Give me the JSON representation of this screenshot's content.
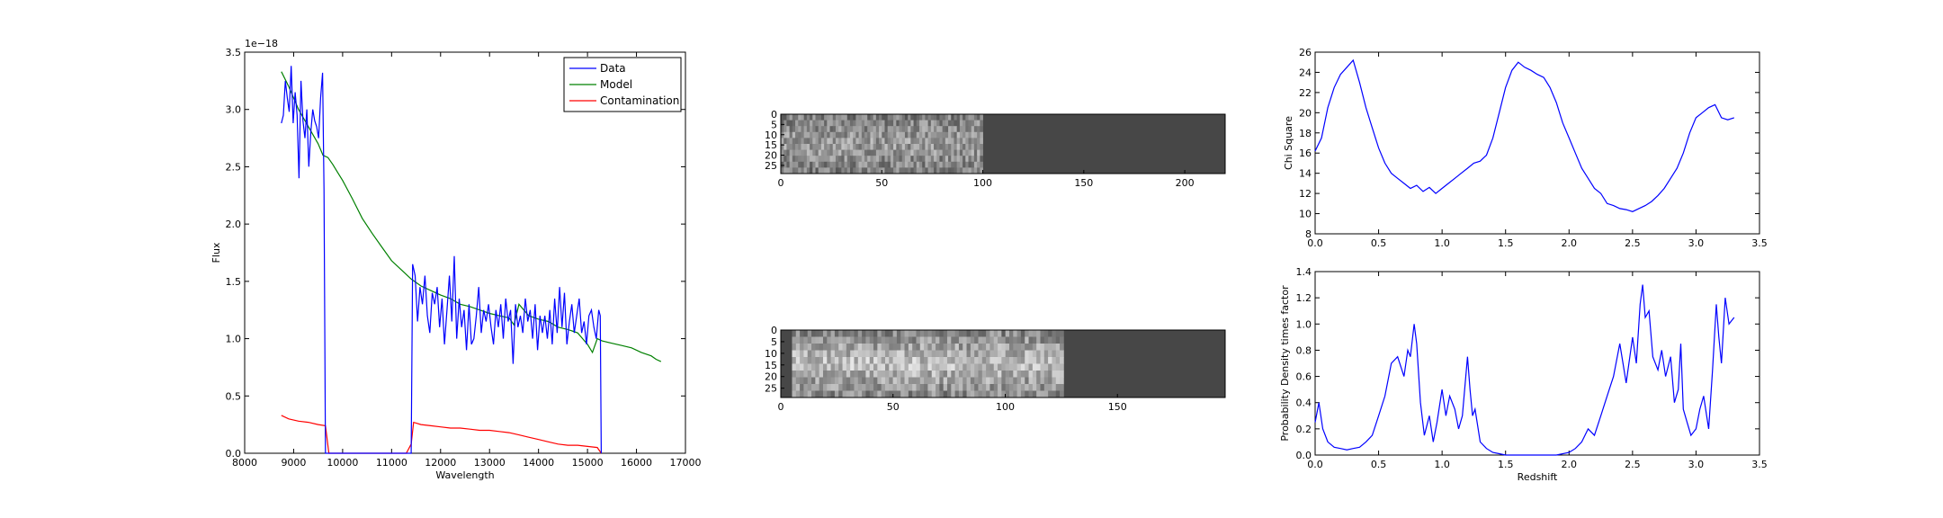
{
  "chart_data": [
    {
      "type": "line",
      "xlabel": "Wavelength",
      "ylabel": "Flux",
      "offset_text": "1e−18",
      "xlim": [
        8000,
        17000
      ],
      "ylim": [
        0.0,
        3.5
      ],
      "x_ticks": [
        8000,
        9000,
        10000,
        11000,
        12000,
        13000,
        14000,
        15000,
        16000,
        17000
      ],
      "y_ticks": [
        0.0,
        0.5,
        1.0,
        1.5,
        2.0,
        2.5,
        3.0,
        3.5
      ],
      "legend_position": "top-right",
      "series": [
        {
          "name": "Data",
          "color": "#0000ff",
          "x": [
            8750,
            8790,
            8830,
            8870,
            8910,
            8950,
            8990,
            9030,
            9070,
            9110,
            9150,
            9190,
            9230,
            9270,
            9310,
            9350,
            9390,
            9430,
            9470,
            9510,
            9550,
            9590,
            9620,
            9650,
            9700,
            9720,
            11400,
            11430,
            11480,
            11530,
            11580,
            11630,
            11680,
            11730,
            11780,
            11830,
            11880,
            11930,
            11980,
            12030,
            12080,
            12130,
            12180,
            12230,
            12280,
            12330,
            12380,
            12430,
            12480,
            12530,
            12580,
            12630,
            12680,
            12730,
            12780,
            12830,
            12880,
            12930,
            12980,
            13030,
            13080,
            13130,
            13180,
            13230,
            13280,
            13330,
            13380,
            13430,
            13480,
            13530,
            13580,
            13630,
            13680,
            13730,
            13780,
            13830,
            13880,
            13930,
            13980,
            14030,
            14080,
            14130,
            14180,
            14230,
            14280,
            14330,
            14380,
            14430,
            14480,
            14530,
            14580,
            14630,
            14680,
            14730,
            14780,
            14830,
            14880,
            14930,
            14980,
            15030,
            15080,
            15130,
            15180,
            15230,
            15260,
            15280
          ],
          "y": [
            2.88,
            2.95,
            3.25,
            3.1,
            2.98,
            3.38,
            2.88,
            3.15,
            2.95,
            2.4,
            3.25,
            2.9,
            2.75,
            3.0,
            2.5,
            2.8,
            3.0,
            2.9,
            2.85,
            2.75,
            3.1,
            3.32,
            2.3,
            0.0,
            0.0,
            0.0,
            0.0,
            1.65,
            1.55,
            1.15,
            1.45,
            1.3,
            1.55,
            1.2,
            1.05,
            1.4,
            1.3,
            1.45,
            1.1,
            1.35,
            0.95,
            1.25,
            1.55,
            1.15,
            1.72,
            1.0,
            1.35,
            1.1,
            1.25,
            0.9,
            1.3,
            0.95,
            1.0,
            1.2,
            1.45,
            1.05,
            1.25,
            1.15,
            1.3,
            1.1,
            0.95,
            1.25,
            1.1,
            1.3,
            1.0,
            1.35,
            1.15,
            1.25,
            0.78,
            1.3,
            1.1,
            1.2,
            1.05,
            1.35,
            1.15,
            1.25,
            1.0,
            1.3,
            0.9,
            1.2,
            1.05,
            1.2,
            1.0,
            1.25,
            0.95,
            1.35,
            1.05,
            1.45,
            1.1,
            1.4,
            0.95,
            1.15,
            1.3,
            1.05,
            1.2,
            1.35,
            1.05,
            1.15,
            0.95,
            1.2,
            1.25,
            1.1,
            1.0,
            1.25,
            1.2,
            0.0
          ]
        },
        {
          "name": "Model",
          "color": "#008000",
          "x": [
            8750,
            8900,
            9100,
            9300,
            9500,
            9600,
            9700,
            9800,
            9900,
            10000,
            10200,
            10400,
            10600,
            10800,
            11000,
            11200,
            11400,
            11600,
            11800,
            12000,
            12200,
            12400,
            12600,
            12800,
            13000,
            13200,
            13400,
            13500,
            13600,
            13800,
            14000,
            14200,
            14400,
            14600,
            14800,
            14900,
            15000,
            15100,
            15200,
            15300,
            15500,
            15700,
            15900,
            16100,
            16300,
            16400,
            16500
          ],
          "y": [
            3.33,
            3.2,
            3.0,
            2.85,
            2.7,
            2.6,
            2.58,
            2.52,
            2.45,
            2.38,
            2.22,
            2.05,
            1.92,
            1.8,
            1.68,
            1.6,
            1.52,
            1.46,
            1.42,
            1.38,
            1.35,
            1.3,
            1.28,
            1.25,
            1.22,
            1.2,
            1.18,
            1.12,
            1.3,
            1.2,
            1.17,
            1.15,
            1.1,
            1.08,
            1.05,
            1.0,
            0.95,
            0.88,
            1.0,
            0.98,
            0.96,
            0.94,
            0.92,
            0.88,
            0.85,
            0.82,
            0.8
          ]
        },
        {
          "name": "Contamination",
          "color": "#ff0000",
          "x": [
            8750,
            8900,
            9100,
            9300,
            9500,
            9650,
            9720,
            9900,
            10500,
            11000,
            11300,
            11400,
            11450,
            11600,
            11800,
            12000,
            12200,
            12400,
            12600,
            12800,
            13000,
            13200,
            13400,
            13600,
            13800,
            14000,
            14200,
            14400,
            14600,
            14800,
            15000,
            15200,
            15280
          ],
          "y": [
            0.33,
            0.3,
            0.28,
            0.27,
            0.25,
            0.24,
            0.0,
            0.0,
            0.0,
            0.0,
            0.0,
            0.08,
            0.27,
            0.25,
            0.24,
            0.23,
            0.22,
            0.22,
            0.21,
            0.2,
            0.2,
            0.19,
            0.18,
            0.16,
            0.14,
            0.12,
            0.1,
            0.08,
            0.07,
            0.07,
            0.06,
            0.05,
            0.0
          ]
        }
      ]
    },
    {
      "type": "heatmap",
      "xlim": [
        0,
        220
      ],
      "ylim": [
        0,
        29
      ],
      "x_ticks": [
        0,
        50,
        100,
        150,
        200
      ],
      "y_ticks": [
        0,
        5,
        10,
        15,
        20,
        25
      ],
      "signal_extent_x": [
        0,
        100
      ],
      "signal_rows": [
        5,
        29
      ]
    },
    {
      "type": "heatmap",
      "xlim": [
        0,
        198
      ],
      "ylim": [
        0,
        29
      ],
      "x_ticks": [
        0,
        50,
        100,
        150
      ],
      "y_ticks": [
        0,
        5,
        10,
        15,
        20,
        25
      ],
      "signal_extent_x": [
        5,
        126
      ],
      "signal_rows": [
        5,
        29
      ]
    },
    {
      "type": "line",
      "xlabel": "",
      "ylabel": "Chi Square",
      "xlim": [
        0.0,
        3.5
      ],
      "ylim": [
        8,
        26
      ],
      "x_ticks": [
        0.0,
        0.5,
        1.0,
        1.5,
        2.0,
        2.5,
        3.0,
        3.5
      ],
      "y_ticks": [
        8,
        10,
        12,
        14,
        16,
        18,
        20,
        22,
        24,
        26
      ],
      "series": [
        {
          "color": "#0000ff",
          "x": [
            0.0,
            0.05,
            0.1,
            0.15,
            0.2,
            0.25,
            0.3,
            0.35,
            0.4,
            0.45,
            0.5,
            0.55,
            0.6,
            0.65,
            0.7,
            0.75,
            0.8,
            0.85,
            0.9,
            0.95,
            1.0,
            1.05,
            1.1,
            1.15,
            1.2,
            1.25,
            1.3,
            1.35,
            1.4,
            1.45,
            1.5,
            1.55,
            1.6,
            1.65,
            1.7,
            1.75,
            1.8,
            1.85,
            1.9,
            1.95,
            2.0,
            2.05,
            2.1,
            2.15,
            2.2,
            2.25,
            2.3,
            2.35,
            2.4,
            2.45,
            2.5,
            2.55,
            2.6,
            2.65,
            2.7,
            2.75,
            2.8,
            2.85,
            2.9,
            2.95,
            3.0,
            3.05,
            3.1,
            3.15,
            3.2,
            3.25,
            3.3
          ],
          "y": [
            16.2,
            17.5,
            20.5,
            22.5,
            23.8,
            24.5,
            25.2,
            23.0,
            20.5,
            18.5,
            16.5,
            15.0,
            14.0,
            13.5,
            13.0,
            12.5,
            12.8,
            12.2,
            12.6,
            12.0,
            12.5,
            13.0,
            13.5,
            14.0,
            14.5,
            15.0,
            15.2,
            15.8,
            17.5,
            20.0,
            22.5,
            24.2,
            25.0,
            24.5,
            24.2,
            23.8,
            23.5,
            22.5,
            21.0,
            19.0,
            17.5,
            16.0,
            14.5,
            13.5,
            12.5,
            12.0,
            11.0,
            10.8,
            10.5,
            10.4,
            10.2,
            10.5,
            10.8,
            11.2,
            11.8,
            12.5,
            13.5,
            14.5,
            16.0,
            18.0,
            19.5,
            20.0,
            20.5,
            20.8,
            19.5,
            19.3,
            19.5
          ]
        }
      ]
    },
    {
      "type": "line",
      "xlabel": "Redshift",
      "ylabel": "Probability Density times factor",
      "xlim": [
        0.0,
        3.5
      ],
      "ylim": [
        0.0,
        1.4
      ],
      "x_ticks": [
        0.0,
        0.5,
        1.0,
        1.5,
        2.0,
        2.5,
        3.0,
        3.5
      ],
      "y_ticks": [
        0.0,
        0.2,
        0.4,
        0.6,
        0.8,
        1.0,
        1.2,
        1.4
      ],
      "series": [
        {
          "color": "#0000ff",
          "x": [
            0.0,
            0.03,
            0.06,
            0.1,
            0.15,
            0.2,
            0.25,
            0.3,
            0.35,
            0.4,
            0.45,
            0.5,
            0.55,
            0.6,
            0.65,
            0.7,
            0.73,
            0.75,
            0.78,
            0.8,
            0.83,
            0.86,
            0.9,
            0.93,
            0.96,
            1.0,
            1.03,
            1.06,
            1.1,
            1.13,
            1.16,
            1.2,
            1.22,
            1.24,
            1.26,
            1.3,
            1.35,
            1.4,
            1.45,
            1.5,
            1.6,
            1.7,
            1.8,
            1.9,
            2.0,
            2.05,
            2.1,
            2.15,
            2.2,
            2.25,
            2.3,
            2.35,
            2.4,
            2.45,
            2.5,
            2.53,
            2.56,
            2.58,
            2.6,
            2.63,
            2.66,
            2.7,
            2.73,
            2.76,
            2.8,
            2.83,
            2.86,
            2.88,
            2.9,
            2.93,
            2.96,
            3.0,
            3.03,
            3.06,
            3.1,
            3.13,
            3.16,
            3.18,
            3.2,
            3.23,
            3.26,
            3.3
          ],
          "y": [
            0.25,
            0.4,
            0.2,
            0.1,
            0.06,
            0.05,
            0.04,
            0.05,
            0.06,
            0.1,
            0.15,
            0.3,
            0.45,
            0.7,
            0.75,
            0.6,
            0.8,
            0.75,
            1.0,
            0.85,
            0.4,
            0.15,
            0.3,
            0.1,
            0.25,
            0.5,
            0.3,
            0.45,
            0.35,
            0.2,
            0.3,
            0.75,
            0.5,
            0.3,
            0.35,
            0.1,
            0.05,
            0.02,
            0.01,
            0.0,
            0.0,
            0.0,
            0.0,
            0.0,
            0.02,
            0.05,
            0.1,
            0.2,
            0.15,
            0.3,
            0.45,
            0.6,
            0.85,
            0.55,
            0.9,
            0.7,
            1.15,
            1.3,
            1.05,
            1.1,
            0.75,
            0.65,
            0.8,
            0.6,
            0.75,
            0.4,
            0.5,
            0.85,
            0.35,
            0.25,
            0.15,
            0.2,
            0.35,
            0.45,
            0.2,
            0.65,
            1.15,
            0.9,
            0.7,
            1.2,
            1.0,
            1.05
          ]
        }
      ]
    }
  ]
}
